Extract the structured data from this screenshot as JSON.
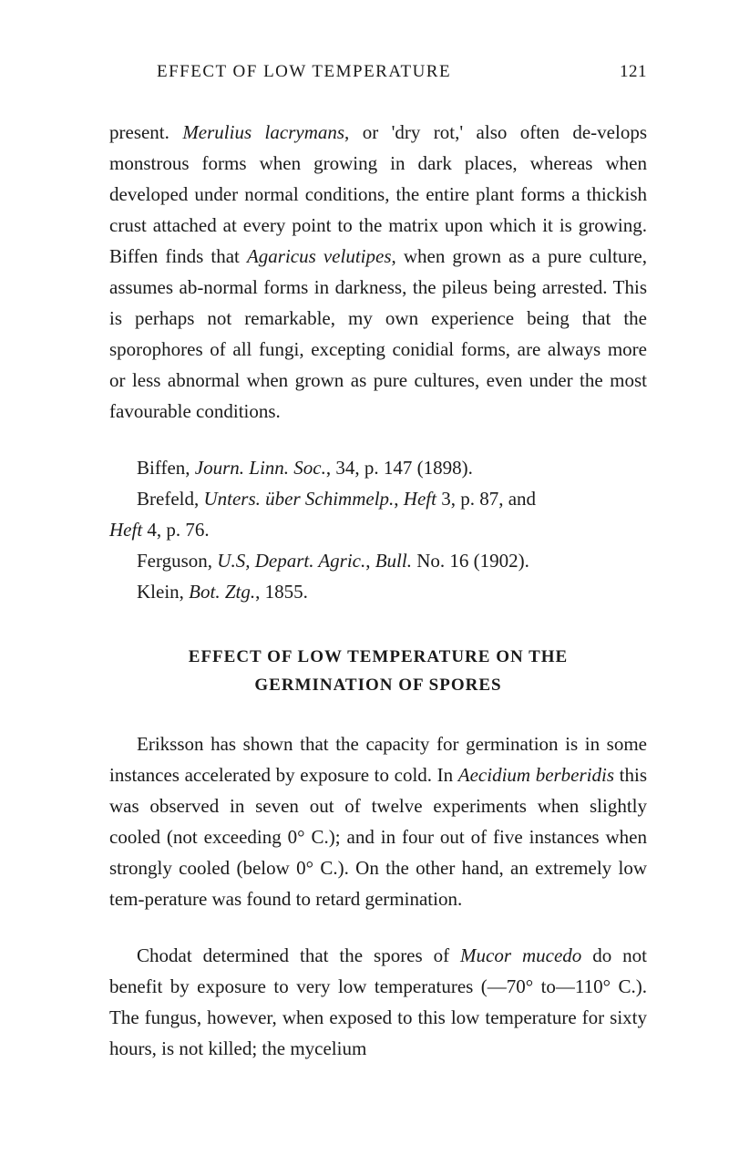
{
  "header": {
    "title": "EFFECT OF LOW TEMPERATURE",
    "page_number": "121"
  },
  "paragraphs": {
    "p1_prefix": "present. ",
    "p1_i1": "Merulius lacrymans",
    "p1_mid1": ", or 'dry rot,' also often de-velops monstrous forms when growing in dark places, whereas when developed under normal conditions, the entire plant forms a thickish crust attached at every point to the matrix upon which it is growing. Biffen finds that ",
    "p1_i2": "Agaricus velutipes",
    "p1_suffix": ", when grown as a pure culture, assumes ab-normal forms in darkness, the pileus being arrested. This is perhaps not remarkable, my own experience being that the sporophores of all fungi, excepting conidial forms, are always more or less abnormal when grown as pure cultures, even under the most favourable conditions."
  },
  "refs": {
    "r1_prefix": "Biffen, ",
    "r1_i1": "Journ. Linn. Soc.",
    "r1_suffix": ", 34, p. 147 (1898).",
    "r2_prefix": "Brefeld, ",
    "r2_i1": "Unters. über Schimmelp.",
    "r2_mid": ", ",
    "r2_i2": "Heft",
    "r2_suffix": " 3, p. 87, and ",
    "r2b_i1": "Heft",
    "r2b_suffix": " 4, p. 76.",
    "r3_prefix": "Ferguson, ",
    "r3_i1": "U.S, Depart. Agric.",
    "r3_mid": ", ",
    "r3_i2": "Bull.",
    "r3_suffix": " No. 16 (1902).",
    "r4_prefix": "Klein, ",
    "r4_i1": "Bot. Ztg.",
    "r4_suffix": ", 1855."
  },
  "section_heading": {
    "line1": "EFFECT OF LOW TEMPERATURE ON THE",
    "line2": "GERMINATION OF SPORES"
  },
  "paragraphs2": {
    "p2_prefix": "Eriksson has shown that the capacity for germination is in some instances accelerated by exposure to cold. In ",
    "p2_i1": "Aecidium berberidis",
    "p2_suffix": " this was observed in seven out of twelve experiments when slightly cooled (not exceeding 0° C.); and in four out of five instances when strongly cooled (below 0° C.). On the other hand, an extremely low tem-perature was found to retard germination.",
    "p3_prefix": "Chodat determined that the spores of ",
    "p3_i1": "Mucor mucedo",
    "p3_suffix": " do not benefit by exposure to very low temperatures (—70° to—110° C.). The fungus, however, when exposed to this low temperature for sixty hours, is not killed; the mycelium"
  }
}
